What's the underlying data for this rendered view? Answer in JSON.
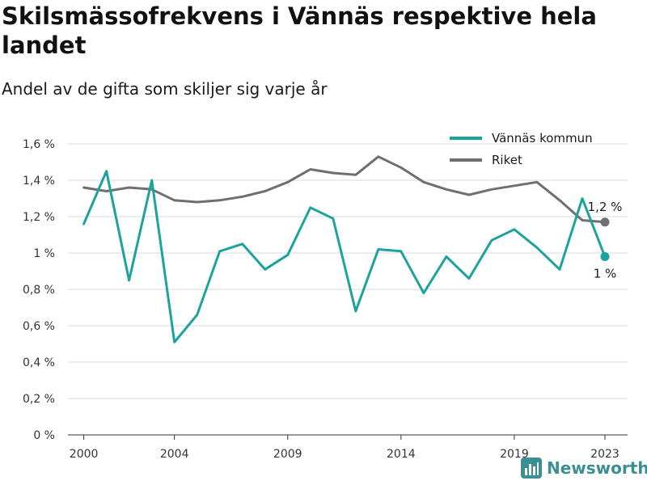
{
  "header": {
    "title": "Skilsmässofrekvens i Vännäs respektive hela landet",
    "subtitle": "Andel av de gifta som skiljer sig varje år"
  },
  "brand": {
    "name": "Newsworthy",
    "icon": "bar-chart-icon",
    "color": "#3a8f93"
  },
  "chart_data": {
    "type": "line",
    "x": [
      2000,
      2001,
      2002,
      2003,
      2004,
      2005,
      2006,
      2007,
      2008,
      2009,
      2010,
      2011,
      2012,
      2013,
      2014,
      2015,
      2016,
      2017,
      2018,
      2019,
      2020,
      2021,
      2022,
      2023
    ],
    "series": [
      {
        "name": "Vännäs kommun",
        "color": "#1ba39c",
        "values": [
          1.16,
          1.45,
          0.85,
          1.4,
          0.51,
          0.66,
          1.01,
          1.05,
          0.91,
          0.99,
          1.25,
          1.19,
          0.68,
          1.02,
          1.01,
          0.78,
          0.98,
          0.86,
          1.07,
          1.13,
          1.03,
          0.91,
          1.3,
          0.98
        ],
        "end_label": "1 %"
      },
      {
        "name": "Riket",
        "color": "#6e6e73",
        "values": [
          1.36,
          1.34,
          1.36,
          1.35,
          1.29,
          1.28,
          1.29,
          1.31,
          1.34,
          1.39,
          1.46,
          1.44,
          1.43,
          1.53,
          1.47,
          1.39,
          1.35,
          1.32,
          1.35,
          1.37,
          1.39,
          1.29,
          1.18,
          1.17
        ],
        "end_label": "1,2 %"
      }
    ],
    "xticks": [
      2000,
      2004,
      2009,
      2014,
      2019,
      2023
    ],
    "xtick_labels": [
      "2000",
      "2004",
      "2009",
      "2014",
      "2019",
      "2023"
    ],
    "yticks": [
      0,
      0.2,
      0.4,
      0.6,
      0.8,
      1.0,
      1.2,
      1.4,
      1.6
    ],
    "ytick_labels": [
      "0 %",
      "0,2 %",
      "0,4 %",
      "0,6 %",
      "0,8 %",
      "1 %",
      "1,2 %",
      "1,4 %",
      "1,6 %"
    ],
    "xlim": [
      1999.3,
      2024.0
    ],
    "ylim": [
      0,
      1.6
    ],
    "grid": true,
    "legend_position": "top-right"
  }
}
